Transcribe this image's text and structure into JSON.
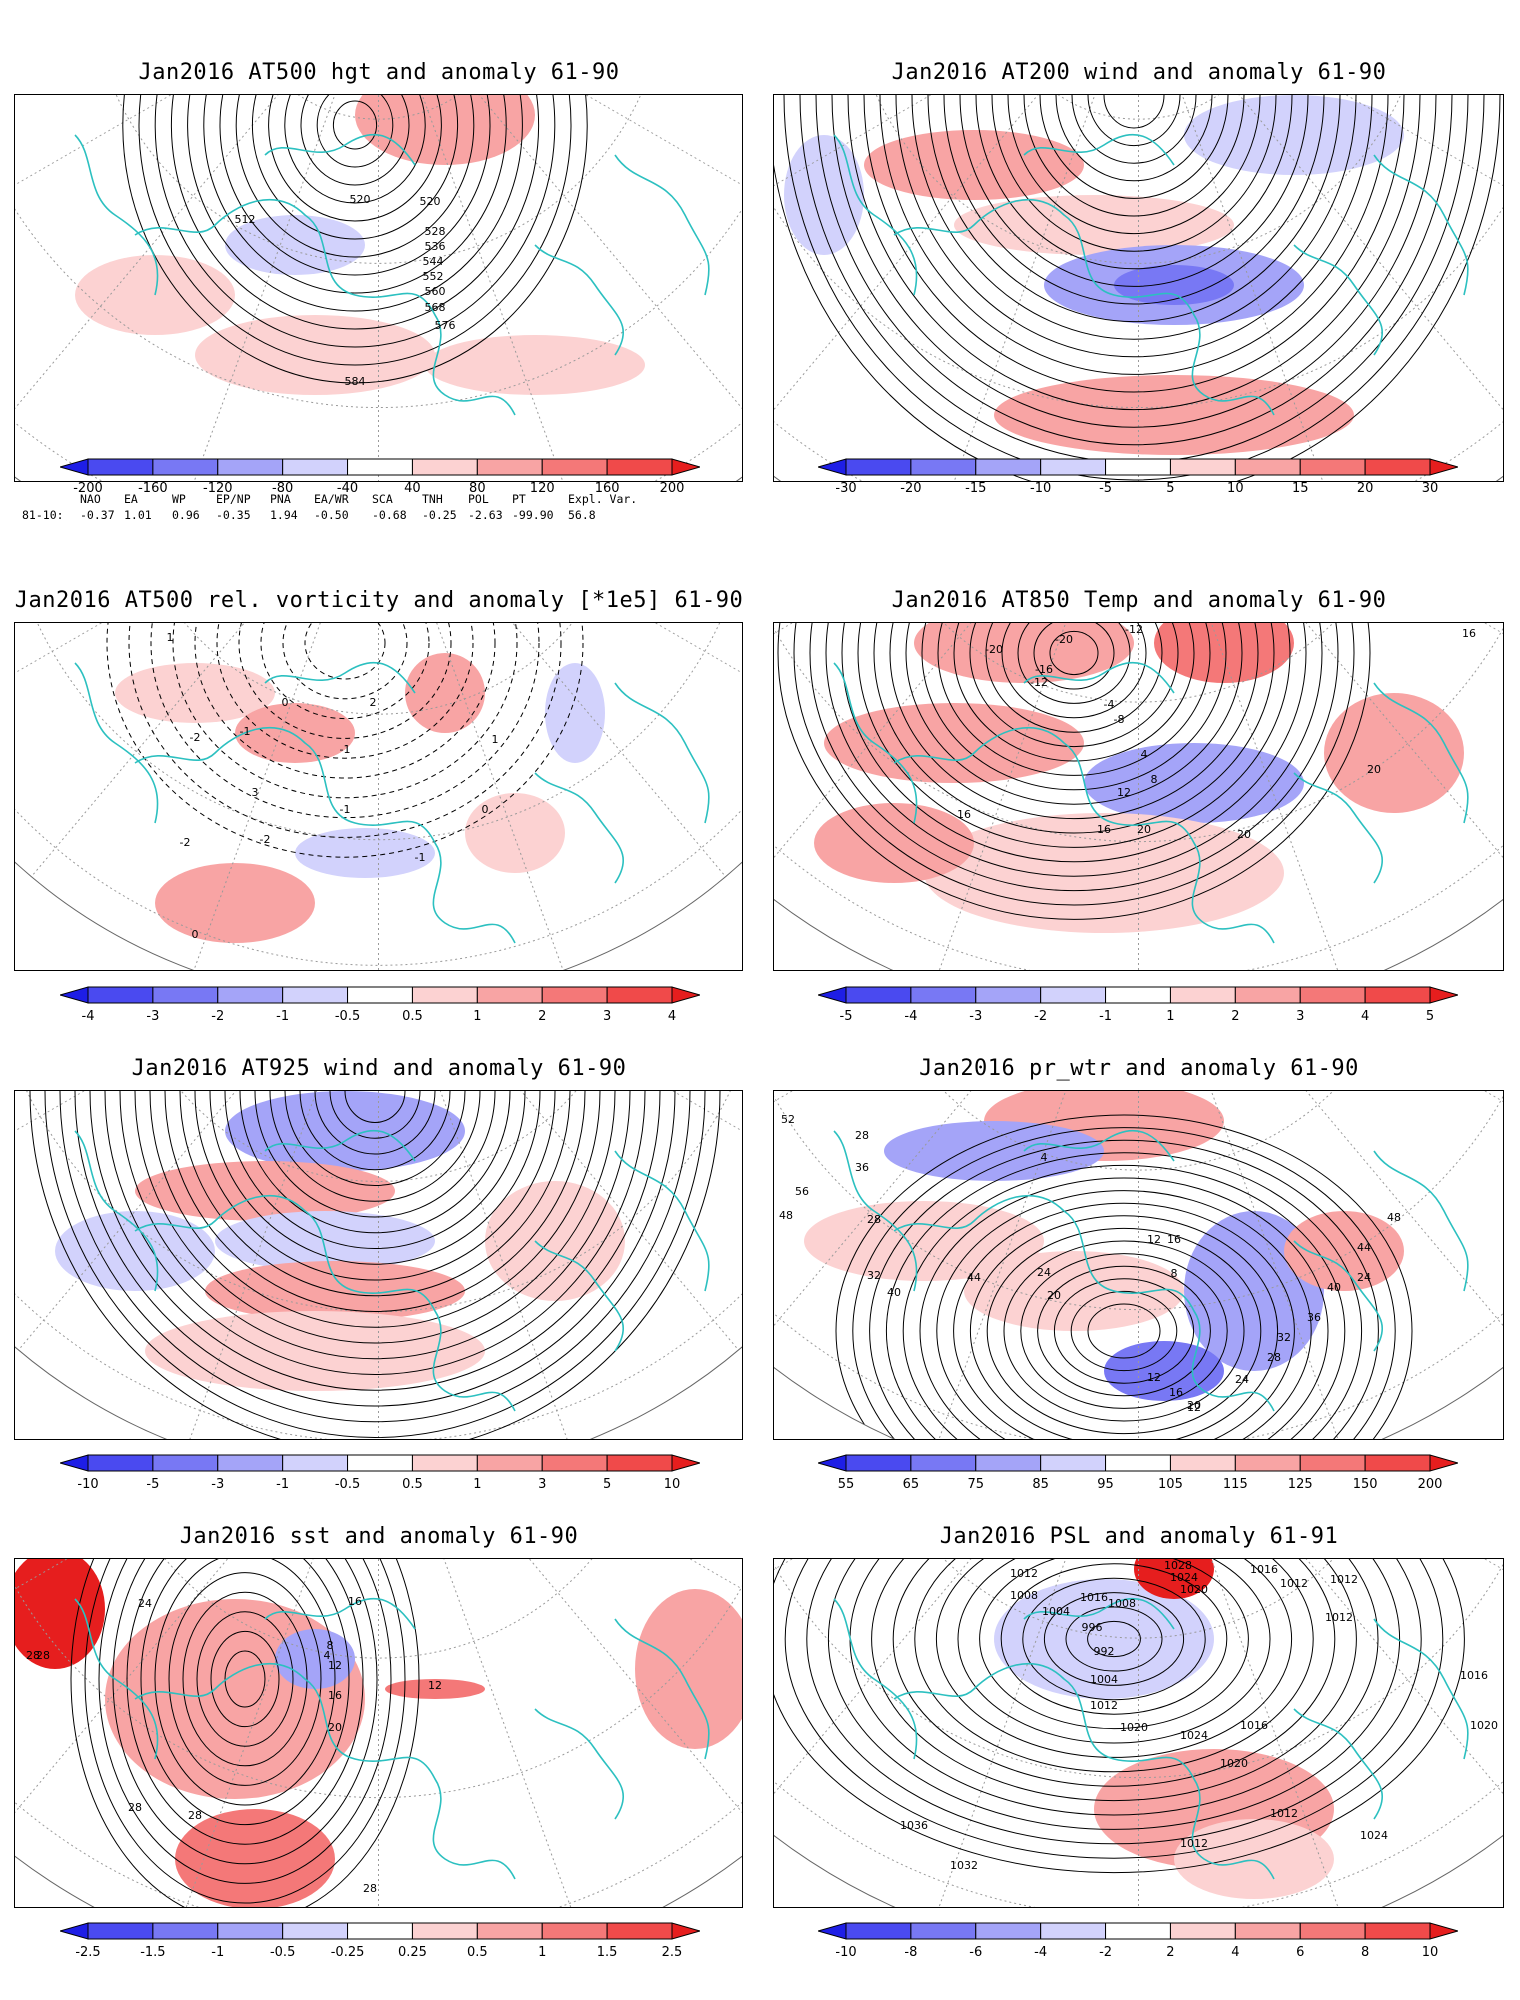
{
  "panels": [
    {
      "id": "hgt500",
      "title": "Jan2016 AT500 hgt and anomaly 61-90",
      "colorbar": {
        "labels": [
          "-200",
          "-160",
          "-120",
          "-80",
          "-40",
          "40",
          "80",
          "120",
          "160",
          "200"
        ],
        "colors": [
          "#1e1ee6",
          "#4a4af0",
          "#7878f4",
          "#a4a4f8",
          "#d2d2fc",
          "#ffffff",
          "#fcd2d2",
          "#f8a4a4",
          "#f47878",
          "#f04a4a",
          "#e61e1e"
        ]
      },
      "contour_labels": [
        "512",
        "520",
        "520",
        "528",
        "536",
        "544",
        "552",
        "560",
        "568",
        "576",
        "584"
      ]
    },
    {
      "id": "wind200",
      "title": "Jan2016 AT200 wind and anomaly 61-90",
      "colorbar": {
        "labels": [
          "-30",
          "-20",
          "-15",
          "-10",
          "-5",
          "5",
          "10",
          "15",
          "20",
          "30"
        ],
        "colors": [
          "#1e1ee6",
          "#4a4af0",
          "#7878f4",
          "#a4a4f8",
          "#d2d2fc",
          "#ffffff",
          "#fcd2d2",
          "#f8a4a4",
          "#f47878",
          "#f04a4a",
          "#e61e1e"
        ]
      }
    },
    {
      "id": "vort500",
      "title": "Jan2016 AT500 rel. vorticity and anomaly [*1e5] 61-90",
      "colorbar": {
        "labels": [
          "-4",
          "-3",
          "-2",
          "-1",
          "-0.5",
          "0.5",
          "1",
          "2",
          "3",
          "4"
        ],
        "colors": [
          "#1e1ee6",
          "#4a4af0",
          "#7878f4",
          "#a4a4f8",
          "#d2d2fc",
          "#ffffff",
          "#fcd2d2",
          "#f8a4a4",
          "#f47878",
          "#f04a4a",
          "#e61e1e"
        ]
      },
      "contour_labels": [
        "1",
        "-2",
        "0",
        "-1",
        "2",
        "3",
        "-1",
        "-2",
        "0",
        "-1",
        "0",
        "-2",
        "-1",
        "1"
      ]
    },
    {
      "id": "temp850",
      "title": "Jan2016 AT850 Temp and anomaly 61-90",
      "colorbar": {
        "labels": [
          "-5",
          "-4",
          "-3",
          "-2",
          "-1",
          "1",
          "2",
          "3",
          "4",
          "5"
        ],
        "colors": [
          "#1e1ee6",
          "#4a4af0",
          "#7878f4",
          "#a4a4f8",
          "#d2d2fc",
          "#ffffff",
          "#fcd2d2",
          "#f8a4a4",
          "#f47878",
          "#f04a4a",
          "#e61e1e"
        ]
      },
      "contour_labels": [
        "-20",
        "-20",
        "-12",
        "-16",
        "-12",
        "-8",
        "-4",
        "4",
        "8",
        "12",
        "16",
        "16",
        "20",
        "20",
        "20",
        "16"
      ]
    },
    {
      "id": "wind925",
      "title": "Jan2016 AT925 wind and anomaly 61-90",
      "colorbar": {
        "labels": [
          "-10",
          "-5",
          "-3",
          "-1",
          "-0.5",
          "0.5",
          "1",
          "3",
          "5",
          "10"
        ],
        "colors": [
          "#1e1ee6",
          "#4a4af0",
          "#7878f4",
          "#a4a4f8",
          "#d2d2fc",
          "#ffffff",
          "#fcd2d2",
          "#f8a4a4",
          "#f47878",
          "#f04a4a",
          "#e61e1e"
        ]
      }
    },
    {
      "id": "prwtr",
      "title": "Jan2016 pr_wtr and anomaly 61-90",
      "colorbar": {
        "labels": [
          "55",
          "65",
          "75",
          "85",
          "95",
          "105",
          "115",
          "125",
          "150",
          "200"
        ],
        "colors": [
          "#1e1ee6",
          "#4a4af0",
          "#7878f4",
          "#a4a4f8",
          "#d2d2fc",
          "#ffffff",
          "#fcd2d2",
          "#f8a4a4",
          "#f47878",
          "#f04a4a",
          "#e61e1e"
        ]
      },
      "contour_labels": [
        "52",
        "28",
        "36",
        "56",
        "48",
        "28",
        "32",
        "40",
        "44",
        "24",
        "20",
        "12",
        "16",
        "8",
        "4",
        "12",
        "16",
        "20",
        "24",
        "28",
        "32",
        "36",
        "40",
        "44",
        "48",
        "12",
        "24"
      ]
    },
    {
      "id": "sst",
      "title": "Jan2016 sst and anomaly 61-90",
      "colorbar": {
        "labels": [
          "-2.5",
          "-1.5",
          "-1",
          "-0.5",
          "-0.25",
          "0.25",
          "0.5",
          "1",
          "1.5",
          "2.5"
        ],
        "colors": [
          "#1e1ee6",
          "#4a4af0",
          "#7878f4",
          "#a4a4f8",
          "#d2d2fc",
          "#ffffff",
          "#fcd2d2",
          "#f8a4a4",
          "#f47878",
          "#f04a4a",
          "#e61e1e"
        ]
      },
      "contour_labels": [
        "28",
        "24",
        "4",
        "8",
        "12",
        "16",
        "20",
        "28",
        "28",
        "28",
        "28",
        "16",
        "12"
      ]
    },
    {
      "id": "psl",
      "title": "Jan2016 PSL and anomaly 61-91",
      "colorbar": {
        "labels": [
          "-10",
          "-8",
          "-6",
          "-4",
          "-2",
          "2",
          "4",
          "6",
          "8",
          "10"
        ],
        "colors": [
          "#1e1ee6",
          "#4a4af0",
          "#7878f4",
          "#a4a4f8",
          "#d2d2fc",
          "#ffffff",
          "#fcd2d2",
          "#f8a4a4",
          "#f47878",
          "#f04a4a",
          "#e61e1e"
        ]
      },
      "contour_labels": [
        "1012",
        "1008",
        "1004",
        "1016",
        "1008",
        "996",
        "992",
        "1004",
        "1012",
        "1020",
        "1024",
        "1016",
        "1020",
        "1012",
        "1012",
        "1036",
        "1032",
        "1028",
        "1024",
        "1020",
        "1016",
        "1012",
        "1012",
        "1012",
        "1016",
        "1020",
        "1024"
      ]
    }
  ],
  "teleconnections": {
    "header": [
      "NAO",
      "EA",
      "WP",
      "EP/NP",
      "PNA",
      "EA/WR",
      "SCA",
      "TNH",
      "POL",
      "PT",
      "Expl. Var."
    ],
    "row_label": "81-10:",
    "values": [
      "-0.37",
      "1.01",
      "0.96",
      "-0.35",
      "1.94",
      "-0.50",
      "-0.68",
      "-0.25",
      "-2.63",
      "-99.90",
      "56.8"
    ]
  },
  "colors": {
    "coast": "#2cc0c0",
    "contour": "#000000",
    "grid": "#9a9a9a"
  }
}
